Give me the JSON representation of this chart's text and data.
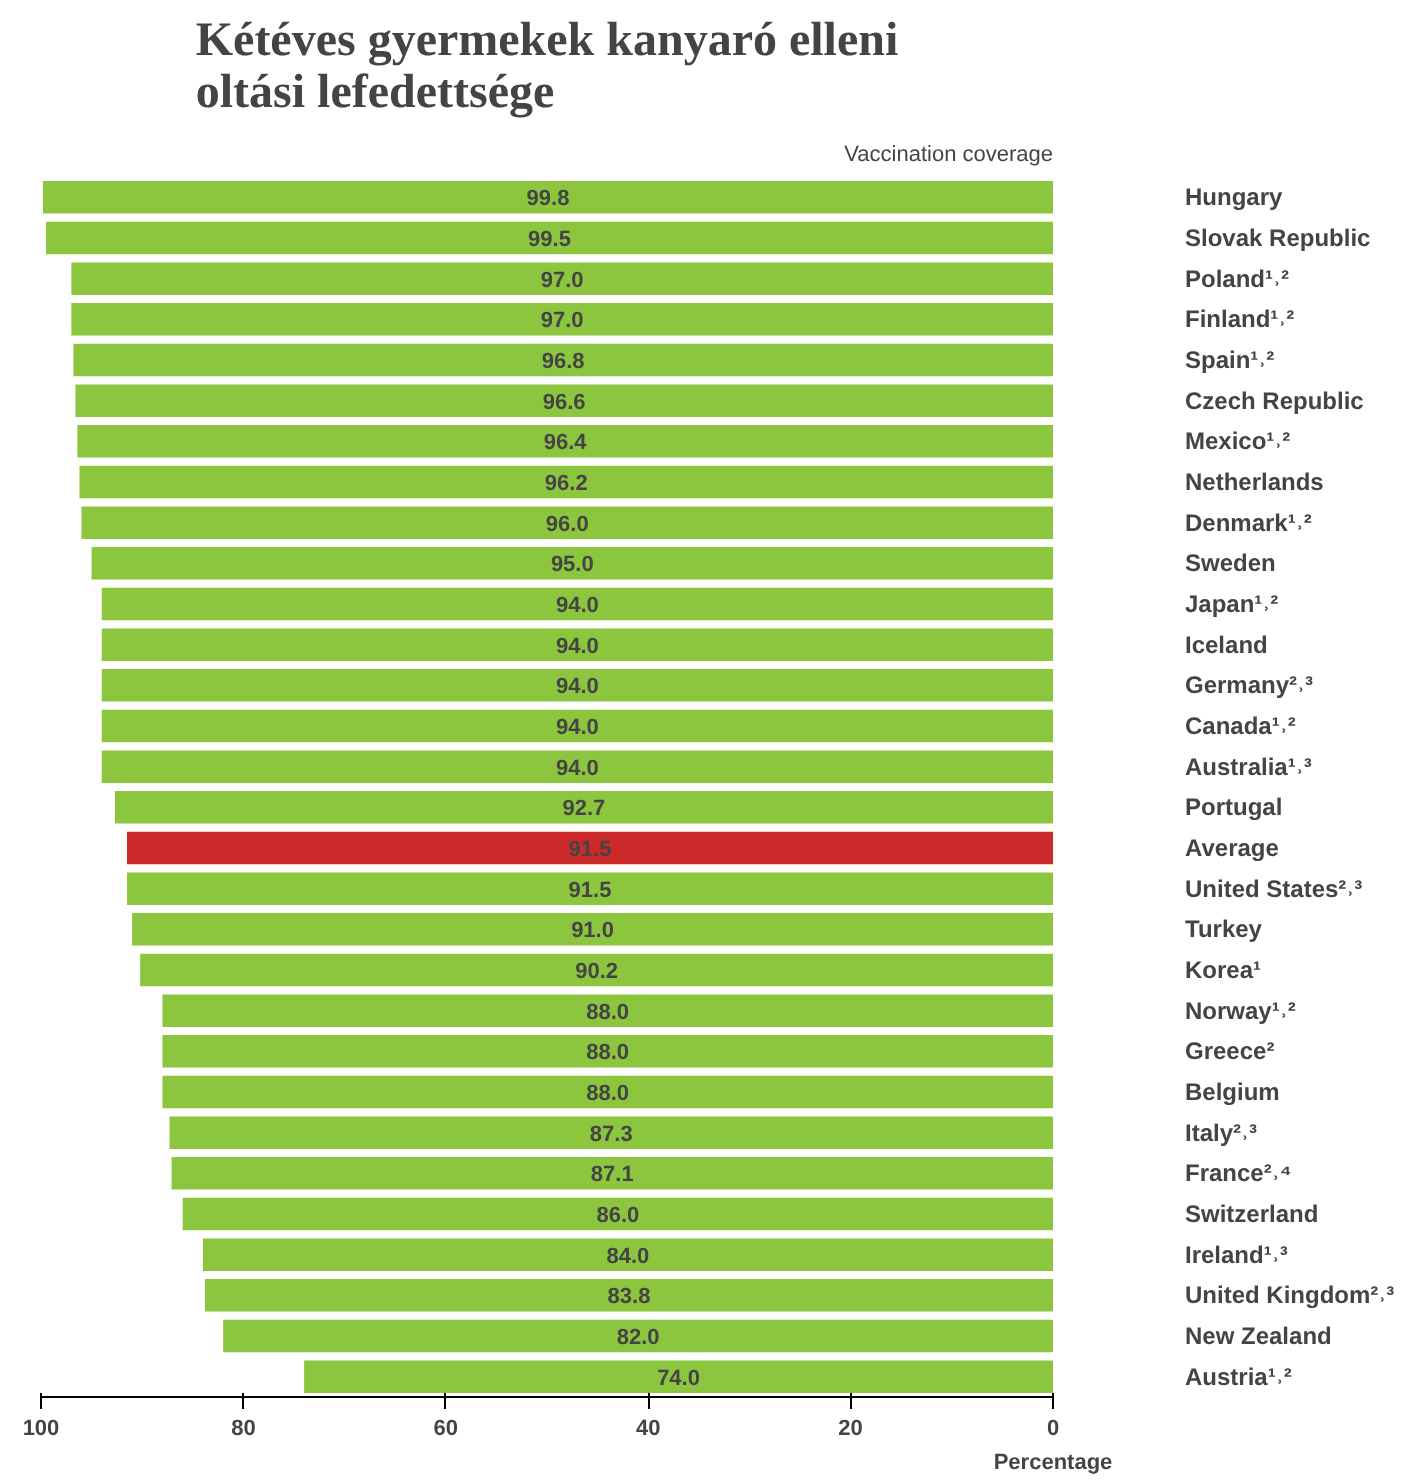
{
  "chart_data": {
    "type": "bar",
    "orientation": "horizontal",
    "title": "Kétéves gyermekek kanyaró elleni oltási lefedettsége",
    "annotations": [
      "Vaccination coverage"
    ],
    "xlabel": "Percentage",
    "categories": [
      "Hungary",
      "Slovak Republic",
      "Poland¹˒²",
      "Finland¹˒²",
      "Spain¹˒²",
      "Czech Republic",
      "Mexico¹˒²",
      "Netherlands",
      "Denmark¹˒²",
      "Sweden",
      "Japan¹˒²",
      "Iceland",
      "Germany²˒³",
      "Canada¹˒²",
      "Australia¹˒³",
      "Portugal",
      "Average",
      "United States²˒³",
      "Turkey",
      "Korea¹",
      "Norway¹˒²",
      "Greece²",
      "Belgium",
      "Italy²˒³",
      "France²˒⁴",
      "Switzerland",
      "Ireland¹˒³",
      "United Kingdom²˒³",
      "New Zealand",
      "Austria¹˒²"
    ],
    "values": [
      99.8,
      99.5,
      97.0,
      97.0,
      96.8,
      96.6,
      96.4,
      96.2,
      96.0,
      95.0,
      94.0,
      94.0,
      94.0,
      94.0,
      94.0,
      92.7,
      91.5,
      91.5,
      91.0,
      90.2,
      88.0,
      88.0,
      88.0,
      87.3,
      87.1,
      86.0,
      84.0,
      83.8,
      82.0,
      74.0
    ],
    "colors": [
      "#8cc63f",
      "#8cc63f",
      "#8cc63f",
      "#8cc63f",
      "#8cc63f",
      "#8cc63f",
      "#8cc63f",
      "#8cc63f",
      "#8cc63f",
      "#8cc63f",
      "#8cc63f",
      "#8cc63f",
      "#8cc63f",
      "#8cc63f",
      "#8cc63f",
      "#8cc63f",
      "#cc2a2a",
      "#8cc63f",
      "#8cc63f",
      "#8cc63f",
      "#8cc63f",
      "#8cc63f",
      "#8cc63f",
      "#8cc63f",
      "#8cc63f",
      "#8cc63f",
      "#8cc63f",
      "#8cc63f",
      "#8cc63f",
      "#8cc63f"
    ],
    "value_labels": [
      "99.8",
      "99.5",
      "97.0",
      "97.0",
      "96.8",
      "96.6",
      "96.4",
      "96.2",
      "96.0",
      "95.0",
      "94.0",
      "94.0",
      "94.0",
      "94.0",
      "94.0",
      "92.7",
      "91.5",
      "91.5",
      "91.0",
      "90.2",
      "88.0",
      "88.0",
      "88.0",
      "87.3",
      "87.1",
      "86.0",
      "84.0",
      "83.8",
      "82.0",
      "74.0"
    ],
    "xlim": [
      100,
      0
    ],
    "xticks": [
      100,
      80,
      60,
      40,
      20,
      0
    ],
    "grid": false
  }
}
